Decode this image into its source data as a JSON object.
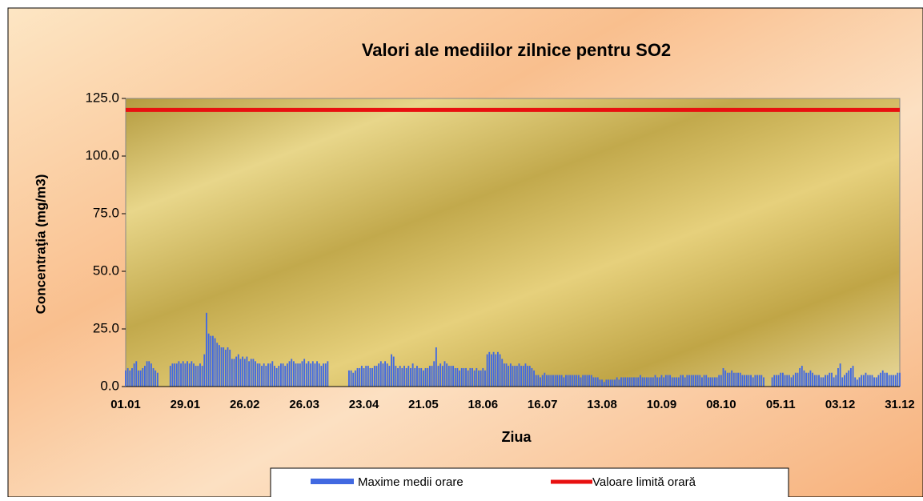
{
  "chart_data": {
    "type": "bar",
    "title": "Valori ale mediilor zilnice pentru SO2",
    "x_label": "Ziua",
    "y_label": "Concentraţia  (mg/m3)",
    "categories": [
      "01.01",
      null,
      null,
      null,
      null,
      null,
      null,
      null,
      null,
      null,
      null,
      null,
      null,
      null,
      null,
      null,
      null,
      null,
      null,
      null,
      null,
      null,
      null,
      null,
      null,
      null,
      null,
      null,
      "29.01",
      null,
      null,
      null,
      null,
      null,
      null,
      null,
      null,
      null,
      null,
      null,
      null,
      null,
      null,
      null,
      null,
      null,
      null,
      null,
      null,
      null,
      null,
      null,
      null,
      null,
      null,
      null,
      "26.02",
      null,
      null,
      null,
      null,
      null,
      null,
      null,
      null,
      null,
      null,
      null,
      null,
      null,
      null,
      null,
      null,
      null,
      null,
      null,
      null,
      null,
      null,
      null,
      null,
      null,
      null,
      null,
      "26.03",
      null,
      null,
      null,
      null,
      null,
      null,
      null,
      null,
      null,
      null,
      null,
      null,
      null,
      null,
      null,
      null,
      null,
      null,
      null,
      null,
      null,
      null,
      null,
      null,
      null,
      null,
      null,
      "23.04",
      null,
      null,
      null,
      null,
      null,
      null,
      null,
      null,
      null,
      null,
      null,
      null,
      null,
      null,
      null,
      null,
      null,
      null,
      null,
      null,
      null,
      null,
      null,
      null,
      null,
      null,
      null,
      "21.05",
      null,
      null,
      null,
      null,
      null,
      null,
      null,
      null,
      null,
      null,
      null,
      null,
      null,
      null,
      null,
      null,
      null,
      null,
      null,
      null,
      null,
      null,
      null,
      null,
      null,
      null,
      null,
      "18.06",
      null,
      null,
      null,
      null,
      null,
      null,
      null,
      null,
      null,
      null,
      null,
      null,
      null,
      null,
      null,
      null,
      null,
      null,
      null,
      null,
      null,
      null,
      null,
      null,
      null,
      null,
      null,
      "16.07",
      null,
      null,
      null,
      null,
      null,
      null,
      null,
      null,
      null,
      null,
      null,
      null,
      null,
      null,
      null,
      null,
      null,
      null,
      null,
      null,
      null,
      null,
      null,
      null,
      null,
      null,
      null,
      "13.08",
      null,
      null,
      null,
      null,
      null,
      null,
      null,
      null,
      null,
      null,
      null,
      null,
      null,
      null,
      null,
      null,
      null,
      null,
      null,
      null,
      null,
      null,
      null,
      null,
      null,
      null,
      null,
      "10.09",
      null,
      null,
      null,
      null,
      null,
      null,
      null,
      null,
      null,
      null,
      null,
      null,
      null,
      null,
      null,
      null,
      null,
      null,
      null,
      null,
      null,
      null,
      null,
      null,
      null,
      null,
      null,
      "08.10",
      null,
      null,
      null,
      null,
      null,
      null,
      null,
      null,
      null,
      null,
      null,
      null,
      null,
      null,
      null,
      null,
      null,
      null,
      null,
      null,
      null,
      null,
      null,
      null,
      null,
      null,
      null,
      "05.11",
      null,
      null,
      null,
      null,
      null,
      null,
      null,
      null,
      null,
      null,
      null,
      null,
      null,
      null,
      null,
      null,
      null,
      null,
      null,
      null,
      null,
      null,
      null,
      null,
      null,
      null,
      null,
      "03.12",
      null,
      null,
      null,
      null,
      null,
      null,
      null,
      null,
      null,
      null,
      null,
      null,
      null,
      null,
      null,
      null,
      null,
      null,
      null,
      null,
      null,
      null,
      null,
      null,
      null,
      null,
      null,
      "31.12"
    ],
    "series": [
      {
        "name": "Maxime medii orare",
        "color": "#4169e1",
        "values": [
          7,
          8,
          7,
          8,
          10,
          11,
          7,
          7,
          8,
          9,
          11,
          11,
          10,
          8,
          7,
          6,
          null,
          null,
          null,
          null,
          null,
          9,
          10,
          10,
          10,
          11,
          10,
          11,
          10,
          11,
          10,
          11,
          10,
          9,
          9,
          10,
          9,
          14,
          32,
          23,
          22,
          22,
          21,
          19,
          18,
          17,
          17,
          16,
          17,
          16,
          12,
          12,
          13,
          14,
          12,
          13,
          12,
          13,
          11,
          12,
          12,
          11,
          10,
          10,
          9,
          10,
          9,
          10,
          10,
          11,
          9,
          8,
          9,
          10,
          10,
          9,
          10,
          11,
          12,
          11,
          10,
          10,
          10,
          11,
          12,
          10,
          11,
          10,
          11,
          10,
          11,
          10,
          9,
          10,
          10,
          11,
          null,
          null,
          null,
          null,
          null,
          null,
          null,
          null,
          null,
          7,
          7,
          6,
          7,
          8,
          8,
          9,
          8,
          9,
          9,
          8,
          8,
          9,
          9,
          10,
          11,
          10,
          11,
          10,
          9,
          14,
          13,
          9,
          8,
          9,
          8,
          9,
          8,
          9,
          8,
          10,
          8,
          9,
          8,
          8,
          7,
          8,
          8,
          9,
          9,
          11,
          17,
          9,
          10,
          9,
          11,
          10,
          9,
          9,
          9,
          8,
          8,
          7,
          8,
          8,
          8,
          7,
          8,
          8,
          7,
          8,
          7,
          7,
          8,
          7,
          14,
          15,
          14,
          15,
          14,
          15,
          14,
          12,
          10,
          10,
          9,
          10,
          9,
          9,
          9,
          10,
          9,
          9,
          10,
          9,
          9,
          8,
          7,
          5,
          5,
          4,
          5,
          6,
          5,
          5,
          5,
          5,
          5,
          5,
          5,
          5,
          4,
          5,
          5,
          5,
          5,
          5,
          5,
          5,
          4,
          5,
          5,
          5,
          5,
          5,
          4,
          4,
          4,
          3,
          3,
          2,
          3,
          3,
          3,
          3,
          3,
          4,
          3,
          4,
          4,
          4,
          4,
          4,
          4,
          4,
          4,
          4,
          5,
          4,
          4,
          4,
          4,
          4,
          4,
          5,
          4,
          4,
          5,
          4,
          5,
          5,
          5,
          4,
          4,
          4,
          4,
          5,
          5,
          4,
          5,
          5,
          5,
          5,
          5,
          5,
          5,
          4,
          5,
          5,
          4,
          4,
          4,
          4,
          4,
          5,
          5,
          8,
          7,
          6,
          6,
          7,
          6,
          6,
          6,
          6,
          5,
          5,
          5,
          5,
          5,
          4,
          5,
          5,
          5,
          5,
          4,
          null,
          null,
          null,
          4,
          5,
          5,
          5,
          6,
          6,
          5,
          5,
          5,
          4,
          5,
          6,
          6,
          8,
          9,
          7,
          6,
          6,
          7,
          6,
          5,
          5,
          5,
          4,
          4,
          5,
          5,
          6,
          6,
          4,
          5,
          8,
          10,
          4,
          5,
          6,
          7,
          8,
          9,
          4,
          3,
          4,
          5,
          5,
          6,
          5,
          5,
          5,
          4,
          4,
          5,
          6,
          7,
          6,
          6,
          5,
          5,
          5,
          5,
          6,
          6
        ]
      }
    ],
    "limit": {
      "name": "Valoare limită orară",
      "value": 120,
      "color": "#e81010"
    },
    "ylim": [
      0,
      125
    ],
    "yticks": [
      {
        "value": 0,
        "label": "0.0"
      },
      {
        "value": 25,
        "label": "25.0"
      },
      {
        "value": 50,
        "label": "50.0"
      },
      {
        "value": 75,
        "label": "75.0"
      },
      {
        "value": 100,
        "label": "100.0"
      },
      {
        "value": 125,
        "label": "125.0"
      }
    ]
  }
}
